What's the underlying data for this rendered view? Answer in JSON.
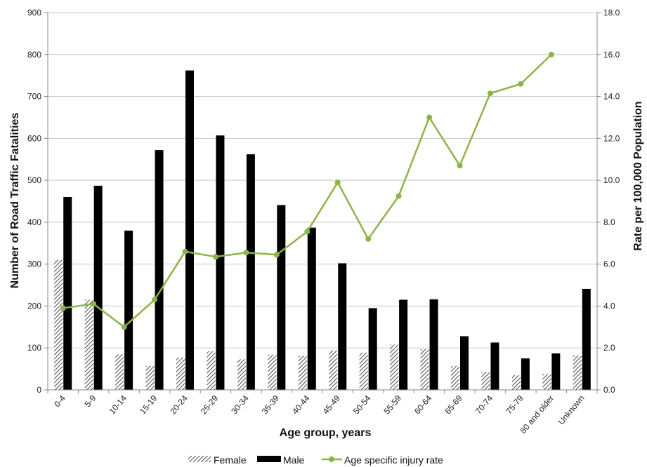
{
  "chart_data": {
    "type": "bar",
    "categories": [
      "0-4",
      "5-9",
      "10-14",
      "15-19",
      "20-24",
      "25-29",
      "30-34",
      "35-39",
      "40-44",
      "45-49",
      "50-54",
      "55-59",
      "60-64",
      "65-69",
      "70-74",
      "75-79",
      "80 and older",
      "Unknown"
    ],
    "series": [
      {
        "name": "Female",
        "type": "bar",
        "axis": "left",
        "pattern": "hatched",
        "color": "#666666",
        "values": [
          310,
          215,
          85,
          57,
          77,
          92,
          73,
          84,
          81,
          94,
          89,
          108,
          97,
          57,
          43,
          35,
          38,
          82
        ]
      },
      {
        "name": "Male",
        "type": "bar",
        "axis": "left",
        "color": "#000000",
        "values": [
          460,
          487,
          380,
          572,
          762,
          607,
          562,
          441,
          387,
          302,
          195,
          215,
          216,
          128,
          113,
          75,
          87,
          241
        ]
      },
      {
        "name": "Age specific injury rate",
        "type": "line",
        "axis": "right",
        "color": "#8db447",
        "values": [
          3.9,
          4.1,
          3.0,
          4.3,
          6.6,
          6.35,
          6.55,
          6.45,
          7.55,
          9.9,
          7.2,
          9.25,
          13.0,
          10.7,
          14.15,
          14.6,
          16.0,
          null
        ]
      }
    ],
    "xlabel": "Age group, years",
    "ylabel": "Number of Road Traffic Fatalities",
    "y2label": "Rate per 100,000 Population",
    "ylim": [
      0,
      900
    ],
    "y2lim": [
      0,
      18
    ],
    "yticks": [
      0,
      100,
      200,
      300,
      400,
      500,
      600,
      700,
      800,
      900
    ],
    "y2ticks": [
      "0.0",
      "2.0",
      "4.0",
      "6.0",
      "8.0",
      "10.0",
      "12.0",
      "14.0",
      "16.0",
      "18.0"
    ],
    "grid": true,
    "legend": {
      "placement": "bottom",
      "items": [
        "Female",
        "Male",
        "Age specific injury rate"
      ]
    }
  }
}
